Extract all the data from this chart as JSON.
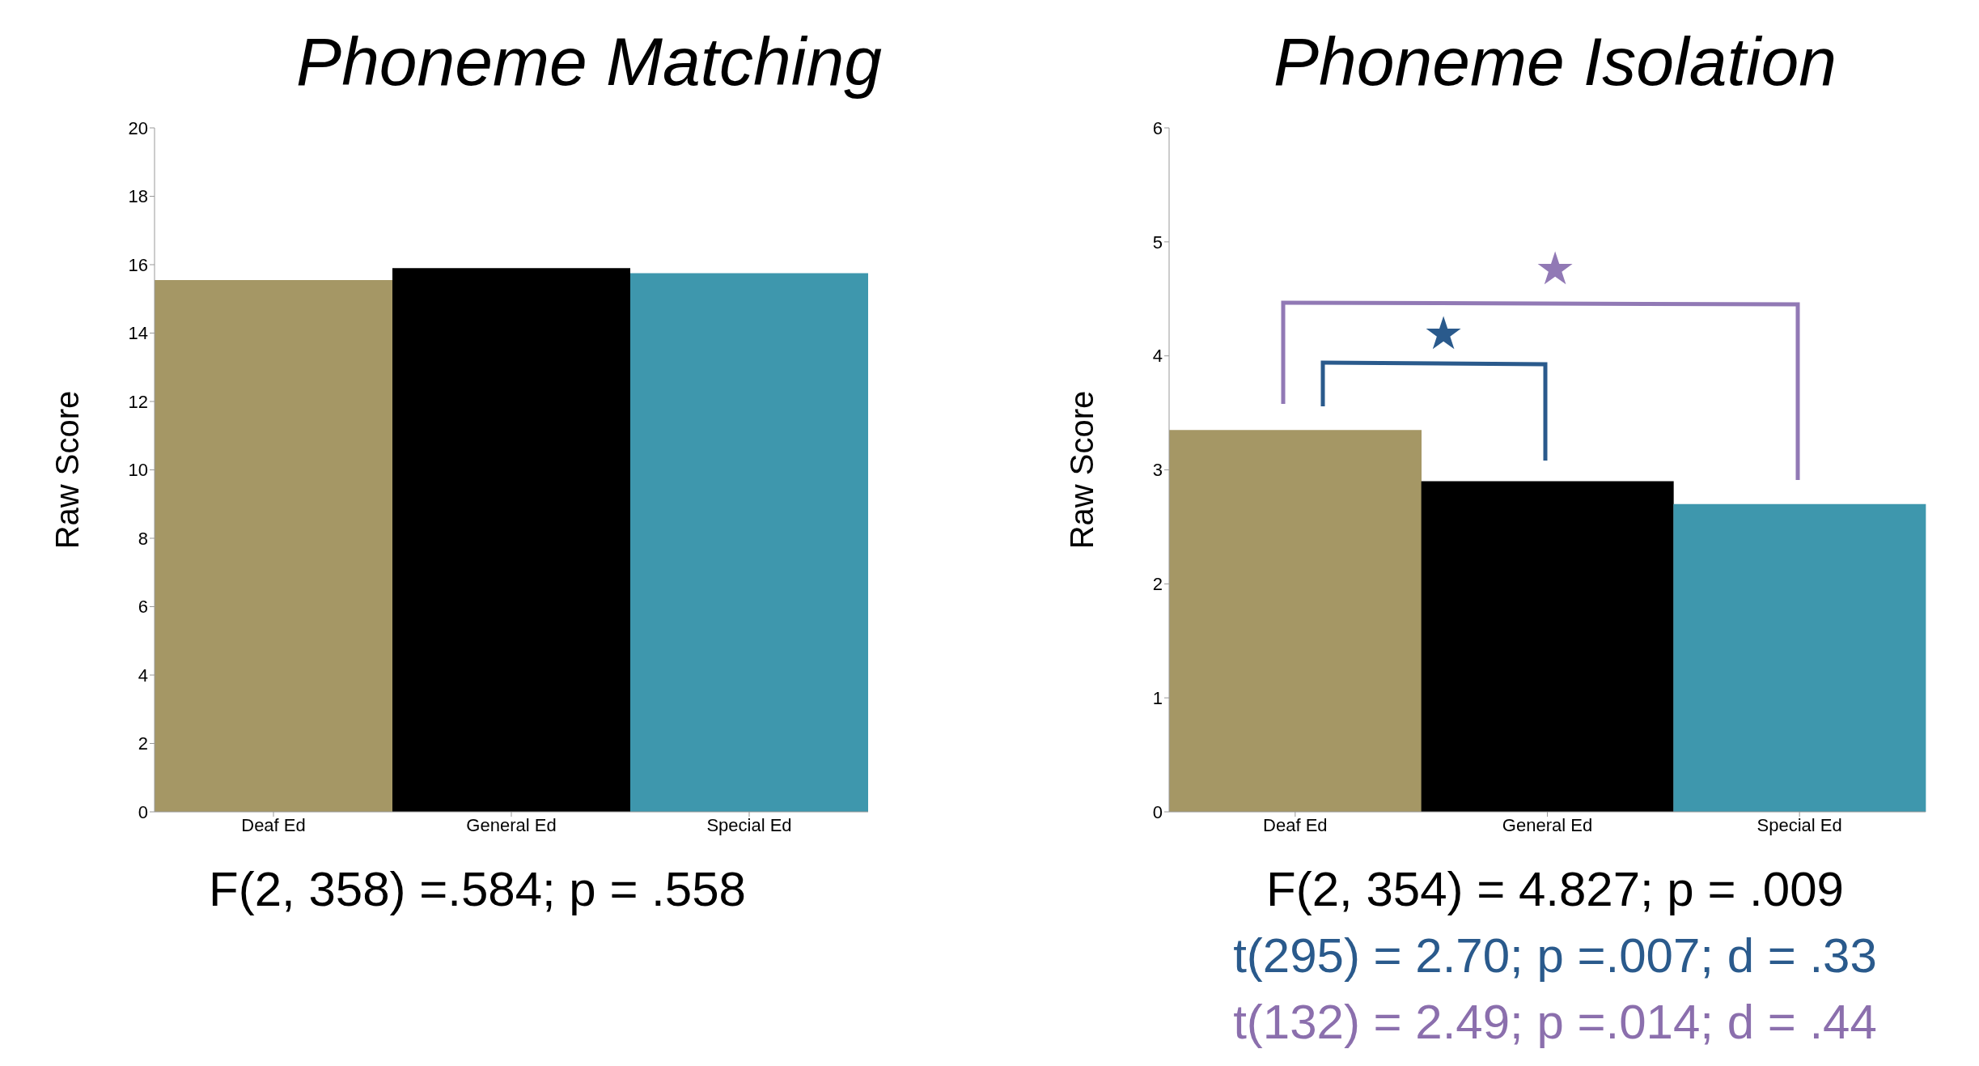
{
  "chart_data": [
    {
      "type": "bar",
      "title": "Phoneme Matching",
      "ylabel": "Raw Score",
      "categories": [
        "Deaf Ed",
        "General Ed",
        "Special Ed"
      ],
      "values": [
        15.55,
        15.9,
        15.75
      ],
      "colors": [
        "#a59765",
        "#000000",
        "#3e97ad"
      ],
      "ylim": [
        0,
        20
      ],
      "yticks": [
        0,
        2,
        4,
        6,
        8,
        10,
        12,
        14,
        16,
        18,
        20
      ],
      "grid": false,
      "legend": false,
      "annotations": [
        "F(2, 358) =.584; p = .558"
      ]
    },
    {
      "type": "bar",
      "title": "Phoneme Isolation",
      "ylabel": "Raw Score",
      "categories": [
        "Deaf Ed",
        "General Ed",
        "Special Ed"
      ],
      "values": [
        3.35,
        2.9,
        2.7
      ],
      "colors": [
        "#a59765",
        "#000000",
        "#3e97ad"
      ],
      "ylim": [
        0,
        6
      ],
      "yticks": [
        0,
        1,
        2,
        3,
        4,
        5,
        6
      ],
      "grid": false,
      "legend": false,
      "annotations": [
        "★",
        "★",
        "F(2, 354) = 4.827; p = .009",
        "t(295) = 2.70; p =.007; d = .33",
        "t(132) = 2.49; p =.014; d = .44"
      ]
    }
  ]
}
